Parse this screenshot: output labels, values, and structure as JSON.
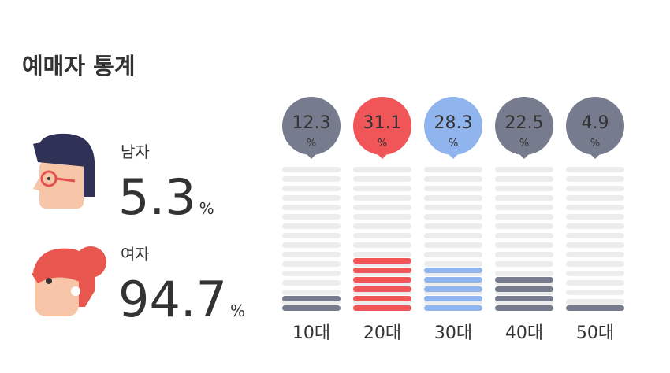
{
  "title": "예매자 통계",
  "gender": [
    {
      "label": "남자",
      "value": 5.3
    },
    {
      "label": "여자",
      "value": 94.7
    }
  ],
  "chart_data": {
    "type": "bar",
    "unit": "%",
    "categories": [
      "10대",
      "20대",
      "30대",
      "40대",
      "50대"
    ],
    "values": [
      12.3,
      31.1,
      28.3,
      22.5,
      4.9
    ],
    "colors": [
      "#777b8e",
      "#f05558",
      "#90b5ee",
      "#777b8e",
      "#777b8e"
    ],
    "background_color": "#ececec"
  }
}
